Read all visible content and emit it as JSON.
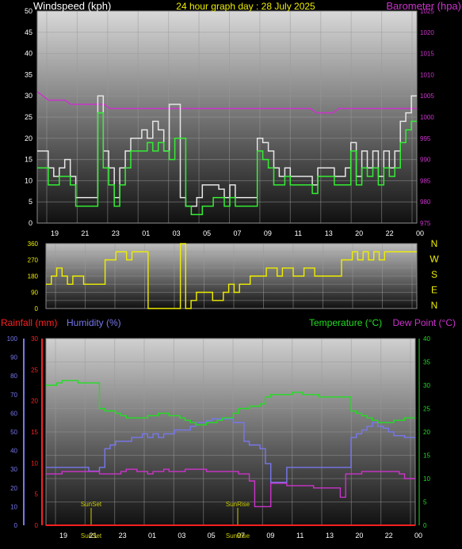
{
  "header": {
    "left": "Windspeed (kph)",
    "center": "24 hour graph day : 28 July 2025",
    "right": "Barometer (hpa)"
  },
  "bottom_header": {
    "rainfall": "Rainfall (mm)",
    "humidity": "Humidity (%)",
    "temperature": "Temperature (°C)",
    "dewpoint": "Dew Point (°C)"
  },
  "colors": {
    "wind_gust": "#e6e6e6",
    "wind_avg": "#33ee33",
    "barometer": "#cc33cc",
    "direction": "#eeee00",
    "rain_axis": "#ff2020",
    "humidity": "#7777ee",
    "temperature": "#22dd22",
    "dewpoint": "#cc33cc",
    "sun": "#cccc00"
  },
  "time_labels": [
    "19",
    "21",
    "23",
    "01",
    "03",
    "05",
    "07",
    "09",
    "11",
    "13",
    "20",
    "22",
    "00"
  ],
  "bottom_time_labels": [
    "19",
    "21",
    "23",
    "01",
    "03",
    "05",
    "07",
    "09",
    "11",
    "13",
    "20",
    "22",
    "00"
  ],
  "sun_labels": [
    "SunSet",
    "SunRise"
  ],
  "compass": [
    "N",
    "W",
    "S",
    "E",
    "N"
  ],
  "chart_data": [
    {
      "type": "line",
      "title": "Windspeed (kph)",
      "ylabel": "Windspeed (kph)",
      "ylim": [
        0,
        50
      ],
      "yticks": [
        0,
        5,
        10,
        15,
        20,
        25,
        30,
        35,
        40,
        45,
        50
      ],
      "y2label": "Barometer (hpa)",
      "y2lim": [
        975,
        1025
      ],
      "y2ticks": [
        975,
        980,
        985,
        990,
        995,
        1000,
        1005,
        1010,
        1015,
        1020,
        1025
      ],
      "grid": true,
      "series": [
        {
          "name": "Gust",
          "values": [
            17,
            17,
            13,
            11,
            13,
            15,
            11,
            6,
            6,
            6,
            6,
            30,
            17,
            13,
            6,
            13,
            17,
            20,
            20,
            22,
            20,
            24,
            22,
            17,
            28,
            28,
            6,
            4,
            4,
            6,
            9,
            9,
            9,
            8,
            6,
            9,
            6,
            6,
            6,
            6,
            20,
            19,
            17,
            13,
            11,
            13,
            11,
            11,
            11,
            11,
            9,
            13,
            13,
            13,
            11,
            11,
            13,
            19,
            11,
            17,
            13,
            17,
            11,
            17,
            13,
            17,
            24,
            26,
            30
          ]
        },
        {
          "name": "Avg",
          "values": [
            13,
            13,
            9,
            9,
            11,
            11,
            9,
            4,
            4,
            4,
            4,
            26,
            13,
            9,
            4,
            9,
            13,
            17,
            17,
            17,
            19,
            17,
            19,
            17,
            15,
            20,
            20,
            4,
            2,
            2,
            4,
            4,
            6,
            6,
            4,
            6,
            4,
            4,
            4,
            4,
            17,
            15,
            13,
            9,
            9,
            11,
            9,
            9,
            9,
            9,
            7,
            11,
            11,
            11,
            9,
            9,
            9,
            17,
            9,
            13,
            11,
            13,
            9,
            13,
            11,
            13,
            19,
            22,
            24
          ]
        },
        {
          "name": "Barometer",
          "values": [
            1006,
            1005,
            1004,
            1004,
            1004,
            1004,
            1003,
            1003,
            1003,
            1003,
            1003,
            1003,
            1003,
            1002,
            1002,
            1002,
            1002,
            1002,
            1002,
            1002,
            1002,
            1002,
            1002,
            1002,
            1002,
            1002,
            1002,
            1002,
            1002,
            1002,
            1002,
            1002,
            1002,
            1002,
            1002,
            1002,
            1002,
            1002,
            1002,
            1002,
            1002,
            1002,
            1002,
            1002,
            1002,
            1002,
            1002,
            1002,
            1002,
            1002,
            1001,
            1001,
            1001,
            1001,
            1002,
            1002,
            1002,
            1002,
            1002,
            1002,
            1002,
            1002,
            1002,
            1002,
            1002,
            1002,
            1002,
            1002,
            1002
          ]
        }
      ]
    },
    {
      "type": "line",
      "title": "Wind direction",
      "ylim": [
        0,
        360
      ],
      "yticks": [
        0,
        45,
        90,
        135,
        180,
        225,
        270,
        315,
        360
      ],
      "grid": true,
      "series": [
        {
          "name": "Direction",
          "values": [
            135,
            180,
            225,
            180,
            135,
            180,
            180,
            135,
            135,
            135,
            135,
            270,
            270,
            315,
            315,
            270,
            315,
            315,
            315,
            0,
            0,
            0,
            0,
            0,
            0,
            360,
            0,
            45,
            90,
            90,
            90,
            45,
            45,
            90,
            135,
            90,
            135,
            135,
            180,
            180,
            180,
            225,
            225,
            180,
            225,
            225,
            180,
            180,
            225,
            225,
            180,
            180,
            180,
            180,
            180,
            270,
            270,
            315,
            270,
            315,
            270,
            315,
            270,
            315,
            315,
            315,
            315,
            315,
            315
          ]
        }
      ]
    },
    {
      "type": "line",
      "title": "",
      "ylabel": "Rainfall (mm) / Humidity (%)",
      "ylim": [
        0,
        100
      ],
      "yticks": [
        0,
        10,
        20,
        30,
        40,
        50,
        60,
        70,
        80,
        90,
        100
      ],
      "rain_ticks": [
        0,
        5,
        10,
        15,
        20,
        25,
        30
      ],
      "y2label": "Temperature (°C) / Dew Point (°C)",
      "y2lim": [
        0,
        40
      ],
      "y2ticks": [
        0,
        5,
        10,
        15,
        20,
        25,
        30,
        35,
        40
      ],
      "grid": true,
      "series": [
        {
          "name": "Humidity",
          "values": [
            31,
            31,
            31,
            31,
            31,
            31,
            31,
            31,
            29,
            29,
            31,
            41,
            43,
            45,
            45,
            45,
            47,
            47,
            49,
            47,
            49,
            47,
            49,
            49,
            51,
            51,
            51,
            53,
            55,
            55,
            56,
            57,
            57,
            57,
            57,
            55,
            55,
            45,
            43,
            43,
            41,
            33,
            23,
            23,
            23,
            31,
            31,
            31,
            31,
            31,
            31,
            31,
            31,
            31,
            31,
            31,
            31,
            47,
            49,
            51,
            53,
            55,
            53,
            52,
            50,
            48,
            48,
            47,
            47
          ]
        },
        {
          "name": "Rainfall",
          "values": [
            0,
            0,
            0,
            0,
            0,
            0,
            0,
            0,
            0,
            0,
            0,
            0,
            0,
            0,
            0,
            0,
            0,
            0,
            0,
            0,
            0,
            0,
            0,
            0,
            0,
            0,
            0,
            0,
            0,
            0,
            0,
            0,
            0,
            0,
            0,
            0,
            0,
            0,
            0,
            0,
            0,
            0,
            0,
            0,
            0,
            0,
            0,
            0,
            0,
            0,
            0,
            0,
            0,
            0,
            0,
            0,
            0,
            0,
            0,
            0,
            0,
            0,
            0,
            0,
            0,
            0,
            0,
            0,
            0
          ]
        },
        {
          "name": "Temperature",
          "values": [
            30,
            30,
            30.5,
            31,
            31,
            31,
            30.5,
            30.5,
            30.5,
            30.5,
            25,
            24.5,
            24.5,
            24,
            23.5,
            23,
            23,
            23,
            23,
            23.5,
            23.5,
            24,
            24,
            23.5,
            23.5,
            23,
            22.5,
            22,
            21.5,
            21.5,
            22,
            22,
            22.5,
            23,
            23,
            24,
            25,
            25,
            25.5,
            25.5,
            26,
            27.5,
            28,
            28,
            28,
            28,
            28.5,
            28.5,
            28,
            28,
            28,
            27.5,
            27.5,
            27.5,
            27.5,
            27.5,
            27.5,
            24.5,
            24,
            23.5,
            23,
            22.5,
            22,
            22,
            22,
            22.5,
            22.5,
            23,
            23
          ]
        },
        {
          "name": "Dew Point",
          "values": [
            11,
            11,
            11,
            11.5,
            11.5,
            11.5,
            11.5,
            11.5,
            11.5,
            11.5,
            11,
            11,
            11,
            11,
            11.5,
            12,
            12,
            11.5,
            11.5,
            11,
            11.5,
            11.5,
            12,
            11.5,
            11.5,
            11.5,
            12,
            12,
            12,
            12,
            11.5,
            11.5,
            11.5,
            11.5,
            11.5,
            11.5,
            11,
            11,
            9.5,
            4,
            4,
            4,
            9,
            9,
            9,
            8.5,
            8.5,
            8.5,
            8.5,
            8.5,
            8,
            8,
            8,
            8,
            8,
            6,
            11,
            11,
            11,
            11.5,
            11.5,
            11.5,
            11.5,
            11.5,
            11.5,
            11.5,
            11,
            10,
            10
          ]
        }
      ]
    }
  ]
}
